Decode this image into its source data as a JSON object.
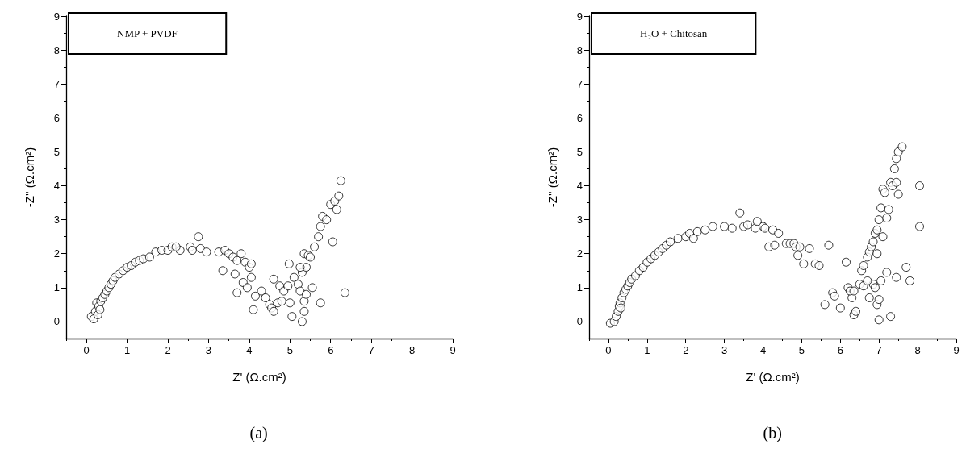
{
  "chart_data": [
    {
      "type": "scatter",
      "xlabel": "Z' (Ω.cm²)",
      "ylabel": "-Z'' (Ω.cm²)",
      "annotations": [
        "NMP + PVDF",
        "(a)"
      ],
      "xlim": [
        -0.5,
        9
      ],
      "ylim": [
        -0.5,
        9
      ],
      "xticks": [
        0,
        1,
        2,
        3,
        4,
        5,
        6,
        7,
        8,
        9
      ],
      "yticks": [
        0,
        1,
        2,
        3,
        4,
        5,
        6,
        7,
        8,
        9
      ],
      "marker": "circle",
      "grid": false,
      "series": [
        {
          "color": "#000000",
          "x": [
            0.12,
            0.18,
            0.22,
            0.25,
            0.28,
            0.3,
            0.33,
            0.35,
            0.4,
            0.45,
            0.5,
            0.55,
            0.6,
            0.65,
            0.7,
            0.8,
            0.9,
            1.0,
            1.1,
            1.2,
            1.3,
            1.4,
            1.55,
            1.7,
            1.85,
            2.0,
            2.1,
            2.3,
            2.2,
            2.55,
            2.6,
            2.75,
            2.8,
            2.95,
            3.25,
            3.4,
            3.5,
            3.35,
            3.6,
            3.7,
            3.8,
            3.9,
            4.0,
            4.05,
            3.65,
            3.7,
            3.85,
            3.95,
            4.05,
            4.1,
            4.15,
            4.3,
            4.4,
            4.5,
            4.55,
            4.6,
            4.7,
            4.8,
            4.6,
            4.75,
            4.85,
            4.95,
            4.98,
            5.0,
            5.05,
            5.1,
            5.2,
            5.25,
            5.3,
            5.35,
            5.3,
            5.4,
            5.35,
            5.45,
            5.5,
            5.35,
            5.4,
            5.6,
            5.7,
            5.75,
            5.8,
            5.9,
            6.0,
            6.1,
            6.2,
            6.25,
            6.15,
            6.05,
            5.75,
            6.35,
            5.55,
            5.25
          ],
          "values": [
            0.15,
            0.08,
            0.3,
            0.55,
            0.2,
            0.45,
            0.35,
            0.6,
            0.7,
            0.8,
            0.9,
            1.0,
            1.1,
            1.2,
            1.3,
            1.4,
            1.5,
            1.6,
            1.65,
            1.75,
            1.8,
            1.85,
            1.9,
            2.05,
            2.1,
            2.1,
            2.2,
            2.1,
            2.2,
            2.2,
            2.1,
            2.5,
            2.15,
            2.05,
            2.05,
            2.1,
            2.0,
            1.5,
            1.9,
            1.8,
            2.0,
            1.75,
            1.6,
            1.7,
            1.4,
            0.85,
            1.15,
            1.0,
            1.3,
            0.35,
            0.75,
            0.9,
            0.7,
            0.5,
            0.4,
            0.3,
            0.55,
            0.6,
            1.25,
            1.05,
            0.9,
            1.05,
            1.7,
            0.55,
            0.15,
            1.3,
            1.1,
            0.9,
            1.45,
            0.3,
            0.0,
            1.6,
            2.0,
            1.95,
            1.9,
            0.6,
            0.8,
            2.2,
            2.5,
            2.8,
            3.1,
            3.0,
            3.45,
            3.55,
            3.7,
            4.15,
            3.3,
            2.35,
            0.55,
            0.85,
            1.0,
            1.6
          ]
        }
      ]
    },
    {
      "type": "scatter",
      "xlabel": "Z' (Ω.cm²)",
      "ylabel": "-Z'' (Ω.cm²)",
      "annotations": [
        "H₂O + Chitosan",
        "(b)"
      ],
      "xlim": [
        -0.5,
        9
      ],
      "ylim": [
        -0.5,
        9
      ],
      "xticks": [
        0,
        1,
        2,
        3,
        4,
        5,
        6,
        7,
        8,
        9
      ],
      "yticks": [
        0,
        1,
        2,
        3,
        4,
        5,
        6,
        7,
        8,
        9
      ],
      "marker": "circle",
      "grid": false,
      "series": [
        {
          "color": "#000000",
          "x": [
            0.05,
            0.15,
            0.2,
            0.25,
            0.28,
            0.3,
            0.32,
            0.35,
            0.4,
            0.45,
            0.5,
            0.55,
            0.6,
            0.7,
            0.8,
            0.9,
            1.0,
            1.1,
            1.2,
            1.3,
            1.4,
            1.5,
            1.6,
            1.8,
            2.0,
            2.1,
            2.2,
            2.3,
            2.5,
            2.7,
            3.0,
            3.2,
            3.4,
            3.5,
            3.6,
            3.8,
            3.85,
            4.0,
            4.05,
            4.15,
            4.25,
            4.3,
            4.4,
            4.6,
            4.7,
            4.8,
            4.85,
            4.9,
            4.95,
            5.05,
            5.2,
            5.35,
            5.45,
            5.6,
            5.7,
            5.8,
            5.85,
            6.0,
            6.15,
            6.2,
            6.3,
            6.25,
            6.35,
            6.4,
            6.35,
            6.5,
            6.6,
            6.55,
            6.6,
            6.7,
            6.75,
            6.8,
            6.85,
            6.9,
            6.95,
            6.85,
            6.7,
            6.75,
            6.95,
            7.0,
            7.05,
            7.1,
            7.0,
            7.0,
            7.05,
            7.1,
            7.2,
            7.15,
            7.3,
            7.35,
            7.4,
            7.45,
            7.5,
            7.45,
            7.5,
            7.6,
            7.25,
            7.3,
            7.45,
            7.7,
            7.8,
            8.05,
            8.05,
            6.9,
            6.95,
            7.2
          ],
          "values": [
            -0.05,
            0.0,
            0.15,
            0.3,
            0.45,
            0.55,
            0.4,
            0.7,
            0.85,
            0.95,
            1.05,
            1.15,
            1.25,
            1.35,
            1.5,
            1.6,
            1.75,
            1.85,
            1.95,
            2.05,
            2.15,
            2.25,
            2.35,
            2.45,
            2.5,
            2.6,
            2.45,
            2.65,
            2.7,
            2.8,
            2.8,
            2.75,
            3.2,
            2.8,
            2.85,
            2.75,
            2.95,
            2.8,
            2.75,
            2.2,
            2.7,
            2.25,
            2.6,
            2.3,
            2.3,
            2.3,
            2.2,
            1.95,
            2.2,
            1.7,
            2.15,
            1.7,
            1.65,
            0.5,
            2.25,
            0.85,
            0.75,
            0.4,
            1.75,
            1.0,
            0.7,
            0.9,
            0.2,
            0.3,
            0.9,
            1.1,
            1.05,
            1.5,
            1.65,
            1.9,
            2.05,
            2.2,
            2.35,
            2.6,
            2.7,
            1.1,
            1.2,
            0.7,
            0.5,
            3.0,
            3.35,
            2.5,
            0.65,
            0.05,
            1.2,
            3.9,
            1.45,
            3.8,
            4.1,
            4.0,
            4.5,
            4.1,
            3.75,
            4.8,
            5.0,
            5.15,
            3.3,
            0.15,
            1.3,
            1.6,
            1.2,
            4.0,
            2.8,
            1.0,
            2.0,
            3.05
          ]
        }
      ]
    }
  ]
}
